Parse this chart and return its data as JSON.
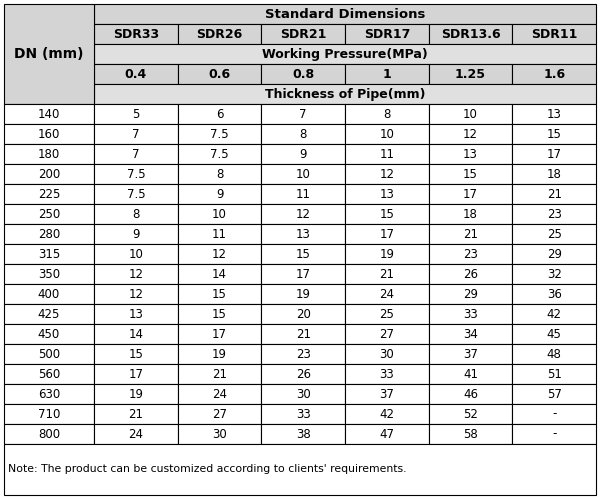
{
  "title": "Standard Dimensions",
  "col_headers": [
    "SDR33",
    "SDR26",
    "SDR21",
    "SDR17",
    "SDR13.6",
    "SDR11"
  ],
  "pressure_label": "Working Pressure(MPa)",
  "pressure_values": [
    "0.4",
    "0.6",
    "0.8",
    "1",
    "1.25",
    "1.6"
  ],
  "thickness_label": "Thickness of Pipe(mm)",
  "dn_label": "DN (mm)",
  "dn_values": [
    "140",
    "160",
    "180",
    "200",
    "225",
    "250",
    "280",
    "315",
    "350",
    "400",
    "425",
    "450",
    "500",
    "560",
    "630",
    "710",
    "800"
  ],
  "table_data": [
    [
      "5",
      "6",
      "7",
      "8",
      "10",
      "13"
    ],
    [
      "7",
      "7.5",
      "8",
      "10",
      "12",
      "15"
    ],
    [
      "7",
      "7.5",
      "9",
      "11",
      "13",
      "17"
    ],
    [
      "7.5",
      "8",
      "10",
      "12",
      "15",
      "18"
    ],
    [
      "7.5",
      "9",
      "11",
      "13",
      "17",
      "21"
    ],
    [
      "8",
      "10",
      "12",
      "15",
      "18",
      "23"
    ],
    [
      "9",
      "11",
      "13",
      "17",
      "21",
      "25"
    ],
    [
      "10",
      "12",
      "15",
      "19",
      "23",
      "29"
    ],
    [
      "12",
      "14",
      "17",
      "21",
      "26",
      "32"
    ],
    [
      "12",
      "15",
      "19",
      "24",
      "29",
      "36"
    ],
    [
      "13",
      "15",
      "20",
      "25",
      "33",
      "42"
    ],
    [
      "14",
      "17",
      "21",
      "27",
      "34",
      "45"
    ],
    [
      "15",
      "19",
      "23",
      "30",
      "37",
      "48"
    ],
    [
      "17",
      "21",
      "26",
      "33",
      "41",
      "51"
    ],
    [
      "19",
      "24",
      "30",
      "37",
      "46",
      "57"
    ],
    [
      "21",
      "27",
      "33",
      "42",
      "52",
      "-"
    ],
    [
      "24",
      "30",
      "38",
      "47",
      "58",
      "-"
    ]
  ],
  "note": "Note: The product can be customized according to clients' requirements.",
  "header_bg": "#d4d4d4",
  "subheader_bg": "#e0e0e0",
  "data_bg": "#ffffff",
  "border_color": "#000000",
  "header_font_size": 9,
  "subheader_font_size": 8.5,
  "data_font_size": 8.5,
  "note_font_size": 7.8,
  "dn_font_size": 10
}
